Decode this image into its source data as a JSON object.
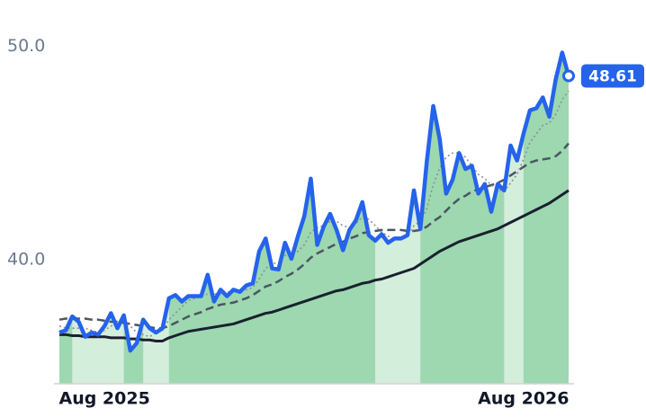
{
  "chart_data": {
    "type": "line",
    "categories": [
      null,
      null,
      null,
      null,
      null,
      null,
      null,
      "Aug 2025",
      null,
      null,
      null,
      null,
      null,
      null,
      null,
      null,
      null,
      null,
      null,
      null,
      null,
      null,
      null,
      null,
      null,
      null,
      null,
      null,
      null,
      null,
      null,
      null,
      null,
      null,
      null,
      null,
      null,
      null,
      null,
      null,
      null,
      null,
      null,
      null,
      null,
      null,
      null,
      null,
      null,
      null,
      null,
      null,
      null,
      null,
      null,
      null,
      null,
      null,
      null,
      null,
      null,
      null,
      null,
      null,
      null,
      null,
      null,
      null,
      null,
      null,
      null,
      null,
      "Aug 2026",
      null,
      null,
      null,
      null,
      null,
      null,
      null
    ],
    "series": [
      {
        "color": "#2563eb",
        "style": "solid",
        "area": true,
        "values": [
          36.6,
          36.7,
          37.35,
          37.1,
          36.4,
          36.6,
          36.5,
          36.9,
          37.5,
          36.8,
          37.4,
          35.75,
          36.1,
          37.2,
          36.8,
          36.6,
          36.8,
          38.2,
          38.35,
          38.05,
          38.3,
          38.3,
          38.3,
          39.3,
          38.05,
          38.6,
          38.3,
          38.6,
          38.5,
          38.8,
          38.9,
          40.4,
          41.0,
          39.6,
          39.55,
          40.8,
          40.05,
          41.1,
          42.05,
          43.8,
          40.7,
          41.55,
          42.15,
          41.4,
          40.45,
          41.4,
          41.85,
          42.7,
          41.15,
          40.9,
          41.2,
          40.8,
          41.0,
          41.0,
          41.15,
          43.25,
          41.45,
          44.6,
          47.2,
          45.65,
          43.1,
          43.75,
          45.0,
          44.25,
          44.4,
          43.1,
          43.55,
          42.25,
          43.55,
          43.25,
          45.35,
          44.65,
          45.9,
          47.0,
          47.1,
          47.6,
          46.7,
          48.45,
          49.7,
          48.61
        ]
      },
      {
        "color": "#8a8f99",
        "style": "dotted",
        "values": [
          36.9,
          36.8,
          36.8,
          36.8,
          36.8,
          36.7,
          36.6,
          36.7,
          36.9,
          37.0,
          37.1,
          36.9,
          36.6,
          36.5,
          36.4,
          36.6,
          36.7,
          37.2,
          37.5,
          37.8,
          38.1,
          38.2,
          38.3,
          38.4,
          38.4,
          38.4,
          38.5,
          38.5,
          38.5,
          38.6,
          38.7,
          39.1,
          39.6,
          39.8,
          39.9,
          40.2,
          40.2,
          40.4,
          40.7,
          41.3,
          41.5,
          41.6,
          41.8,
          41.8,
          41.6,
          41.5,
          41.7,
          42.0,
          41.9,
          41.6,
          41.3,
          41.1,
          41.0,
          41.0,
          41.1,
          41.6,
          41.8,
          42.4,
          43.5,
          44.3,
          44.8,
          45.0,
          45.0,
          44.8,
          44.4,
          44.0,
          43.8,
          43.5,
          43.3,
          43.2,
          43.6,
          44.0,
          44.7,
          45.5,
          45.9,
          46.3,
          46.4,
          46.8,
          47.5,
          47.9
        ]
      },
      {
        "color": "#4b5563",
        "style": "dashed",
        "values": [
          37.2,
          37.25,
          37.25,
          37.25,
          37.25,
          37.2,
          37.2,
          37.15,
          37.1,
          37.1,
          37.05,
          37.0,
          36.95,
          36.9,
          36.85,
          36.8,
          36.8,
          36.9,
          37.05,
          37.2,
          37.35,
          37.45,
          37.55,
          37.7,
          37.8,
          37.9,
          37.95,
          38.0,
          38.1,
          38.2,
          38.35,
          38.55,
          38.75,
          38.85,
          39.0,
          39.2,
          39.35,
          39.55,
          39.8,
          40.1,
          40.3,
          40.45,
          40.6,
          40.75,
          40.85,
          41.0,
          41.1,
          41.25,
          41.3,
          41.35,
          41.4,
          41.4,
          41.4,
          41.4,
          41.35,
          41.35,
          41.4,
          41.55,
          41.8,
          42.0,
          42.3,
          42.6,
          42.85,
          43.0,
          43.2,
          43.3,
          43.4,
          43.5,
          43.6,
          43.75,
          43.95,
          44.15,
          44.35,
          44.55,
          44.65,
          44.7,
          44.75,
          44.85,
          45.1,
          45.45
        ]
      },
      {
        "color": "#1a2030",
        "style": "solid",
        "values": [
          36.5,
          36.5,
          36.45,
          36.45,
          36.4,
          36.4,
          36.4,
          36.4,
          36.35,
          36.35,
          36.35,
          36.3,
          36.3,
          36.25,
          36.25,
          36.2,
          36.2,
          36.35,
          36.45,
          36.55,
          36.65,
          36.7,
          36.75,
          36.8,
          36.85,
          36.9,
          36.95,
          37.0,
          37.1,
          37.2,
          37.3,
          37.4,
          37.5,
          37.55,
          37.65,
          37.75,
          37.85,
          37.95,
          38.05,
          38.15,
          38.25,
          38.35,
          38.45,
          38.55,
          38.6,
          38.7,
          38.8,
          38.9,
          38.95,
          39.05,
          39.1,
          39.2,
          39.3,
          39.4,
          39.5,
          39.6,
          39.8,
          40.0,
          40.2,
          40.4,
          40.55,
          40.7,
          40.85,
          40.95,
          41.05,
          41.15,
          41.25,
          41.35,
          41.45,
          41.6,
          41.75,
          41.9,
          42.05,
          42.2,
          42.35,
          42.5,
          42.65,
          42.85,
          43.05,
          43.25
        ]
      }
    ],
    "shaded_periods": [
      [
        2,
        10
      ],
      [
        13,
        17
      ],
      [
        49,
        56
      ],
      [
        69,
        72
      ]
    ],
    "area_color": "#9dd8b0",
    "shade_color": "#d4eedc",
    "ylim": [
      34.2,
      50.9
    ],
    "yticks": [
      {
        "value": 40,
        "label": "40.0"
      },
      {
        "value": 50,
        "label": "50.0"
      }
    ],
    "grid": false
  }
}
